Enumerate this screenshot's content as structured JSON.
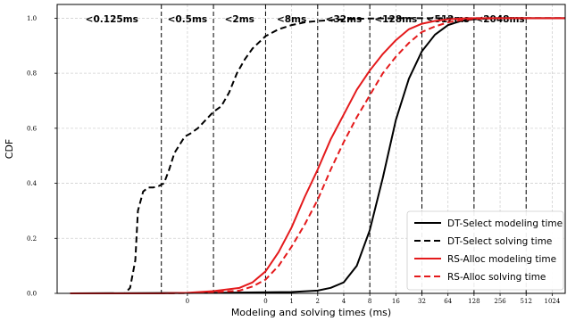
{
  "chart_data": {
    "type": "line",
    "xlabel": "Modeling and solving times (ms)",
    "ylabel": "CDF",
    "x_scale": "log2",
    "xlim": [
      -9,
      10.5
    ],
    "ylim": [
      0,
      1.05
    ],
    "grid": true,
    "legend_position": "lower-right",
    "y_ticks": [
      "0.0",
      "0.2",
      "0.4",
      "0.6",
      "0.8",
      "1.0"
    ],
    "x_ticks": [
      {
        "value": -4,
        "label": "0"
      },
      {
        "value": -1,
        "label": "0"
      },
      {
        "value": 0,
        "label": "1"
      },
      {
        "value": 1,
        "label": "2"
      },
      {
        "value": 2,
        "label": "4"
      },
      {
        "value": 3,
        "label": "8"
      },
      {
        "value": 4,
        "label": "16"
      },
      {
        "value": 5,
        "label": "32"
      },
      {
        "value": 6,
        "label": "64"
      },
      {
        "value": 7,
        "label": "128"
      },
      {
        "value": 8,
        "label": "256"
      },
      {
        "value": 9,
        "label": "512"
      },
      {
        "value": 10,
        "label": "1024"
      }
    ],
    "boundaries": [
      -5,
      -3,
      -1,
      1,
      3,
      5,
      7,
      9
    ],
    "bands": [
      {
        "label": "<0.125ms",
        "center": -6.9
      },
      {
        "label": "<0.5ms",
        "center": -4
      },
      {
        "label": "<2ms",
        "center": -2
      },
      {
        "label": "<8ms",
        "center": 0
      },
      {
        "label": "<32ms",
        "center": 2
      },
      {
        "label": "<128ms",
        "center": 4
      },
      {
        "label": "<512ms",
        "center": 6
      },
      {
        "label": "<2048ms",
        "center": 8
      }
    ],
    "series": [
      {
        "name": "DT-Select modeling time",
        "color": "#000000",
        "dash": "solid",
        "x": [
          -8.5,
          -3,
          0,
          1,
          1.5,
          2,
          2.5,
          3,
          3.5,
          4,
          4.5,
          5,
          5.5,
          6,
          6.5,
          7,
          7.5,
          8,
          10.5
        ],
        "y": [
          0,
          0.002,
          0.005,
          0.01,
          0.02,
          0.04,
          0.1,
          0.23,
          0.42,
          0.63,
          0.78,
          0.88,
          0.94,
          0.975,
          0.99,
          0.996,
          0.999,
          1.0,
          1.0
        ]
      },
      {
        "name": "DT-Select solving time",
        "color": "#000000",
        "dash": "dashed",
        "x": [
          -8.5,
          -6.4,
          -6.2,
          -6.0,
          -5.9,
          -5.7,
          -5.5,
          -5.3,
          -5.1,
          -4.9,
          -4.7,
          -4.5,
          -4.3,
          -4.1,
          -3.9,
          -3.6,
          -3.4,
          -3.2,
          -3.0,
          -2.7,
          -2.4,
          -2.1,
          -1.8,
          -1.5,
          -1.0,
          -0.5,
          0,
          0.5,
          1,
          2,
          3,
          4,
          10.5
        ],
        "y": [
          0,
          0,
          0.02,
          0.12,
          0.3,
          0.37,
          0.385,
          0.385,
          0.39,
          0.4,
          0.45,
          0.51,
          0.54,
          0.57,
          0.58,
          0.6,
          0.62,
          0.64,
          0.66,
          0.68,
          0.73,
          0.8,
          0.85,
          0.89,
          0.935,
          0.96,
          0.975,
          0.985,
          0.99,
          0.996,
          0.999,
          1.0,
          1.0
        ]
      },
      {
        "name": "RS-Alloc modeling time",
        "color": "#e41a1c",
        "dash": "solid",
        "x": [
          -8.5,
          -5,
          -4,
          -3,
          -2,
          -1.5,
          -1,
          -0.5,
          0,
          0.5,
          1,
          1.5,
          2,
          2.5,
          3,
          3.5,
          4,
          4.5,
          5,
          5.5,
          6,
          6.5,
          7,
          10.5
        ],
        "y": [
          0,
          0,
          0.002,
          0.008,
          0.02,
          0.04,
          0.08,
          0.15,
          0.24,
          0.35,
          0.45,
          0.56,
          0.65,
          0.74,
          0.81,
          0.87,
          0.92,
          0.96,
          0.98,
          0.99,
          0.996,
          0.999,
          1.0,
          1.0
        ]
      },
      {
        "name": "RS-Alloc solving time",
        "color": "#e41a1c",
        "dash": "dashed",
        "x": [
          -8.5,
          -5,
          -4,
          -3,
          -2,
          -1.5,
          -1,
          -0.5,
          0,
          0.5,
          1,
          1.5,
          2,
          2.5,
          3,
          3.5,
          4,
          4.5,
          5,
          5.5,
          6,
          6.5,
          7,
          7.5,
          8,
          10.5
        ],
        "y": [
          0,
          0,
          0.001,
          0.004,
          0.01,
          0.025,
          0.05,
          0.1,
          0.17,
          0.25,
          0.34,
          0.45,
          0.55,
          0.64,
          0.72,
          0.8,
          0.86,
          0.91,
          0.95,
          0.97,
          0.985,
          0.993,
          0.998,
          0.999,
          1.0,
          1.0
        ]
      }
    ]
  }
}
